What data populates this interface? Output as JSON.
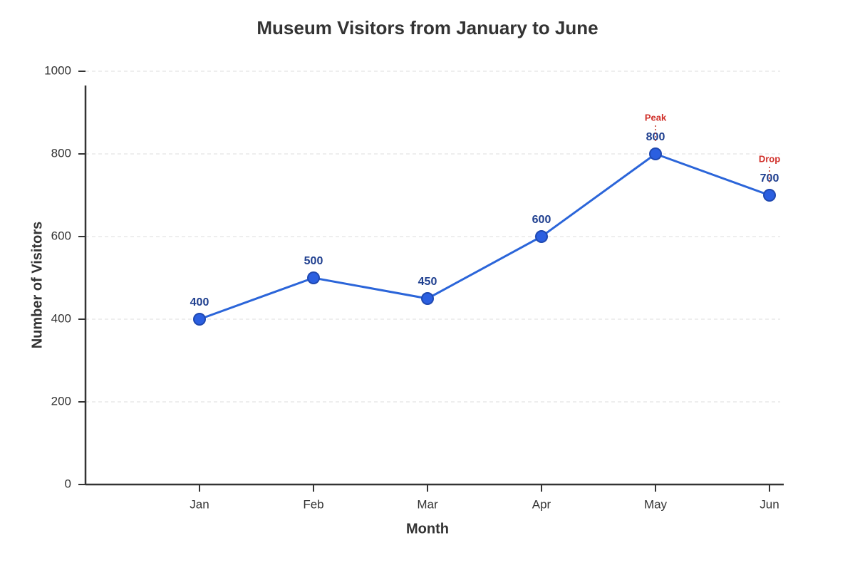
{
  "chart_data": {
    "type": "line",
    "title": "Museum Visitors from January to June",
    "x_label": "Month",
    "y_label": "Number of Visitors",
    "categories": [
      "Jan",
      "Feb",
      "Mar",
      "Apr",
      "May",
      "Jun"
    ],
    "values": [
      400,
      500,
      450,
      600,
      800,
      700
    ],
    "color": "#2b65d9",
    "ylim": [
      0,
      1000
    ],
    "yticks": [
      0,
      200,
      400,
      600,
      800,
      1000
    ],
    "grid": true,
    "annotations": [
      {
        "text": "Peak",
        "category": "May"
      },
      {
        "text": "Drop",
        "category": "Jun"
      }
    ]
  }
}
